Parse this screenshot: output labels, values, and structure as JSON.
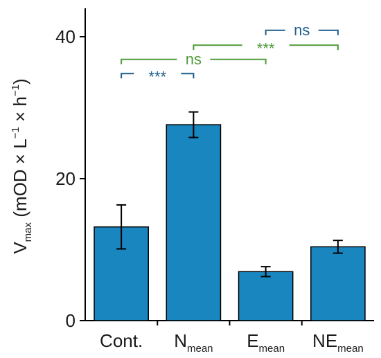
{
  "chart_data": {
    "type": "bar",
    "categories": [
      {
        "main": "Cont.",
        "sub": ""
      },
      {
        "main": "N",
        "sub": "mean"
      },
      {
        "main": "E",
        "sub": "mean"
      },
      {
        "main": "NE",
        "sub": "mean"
      }
    ],
    "values": [
      13.2,
      27.6,
      6.9,
      10.4
    ],
    "errors": [
      3.1,
      1.8,
      0.7,
      0.9
    ],
    "ylim": [
      0,
      44
    ],
    "yticks": [
      0,
      20,
      40
    ],
    "ylabel": {
      "main": "V",
      "main_sub": "max",
      "unit_open": " (mOD × L",
      "sup1": "−1",
      "unit_mid": " × h",
      "sup2": "−1",
      "unit_close": ")"
    },
    "bar_color": "#1a86bf",
    "significance": [
      {
        "from": 0,
        "to": 1,
        "label": "***",
        "color": "#1f5f8f",
        "y": 34.8
      },
      {
        "from": 0,
        "to": 2,
        "label": "ns",
        "color": "#4e9a3a",
        "y": 36.8
      },
      {
        "from": 1,
        "to": 3,
        "label": "***",
        "color": "#4e9a3a",
        "y": 38.8
      },
      {
        "from": 2,
        "to": 3,
        "label": "ns",
        "color": "#1f5f8f",
        "y": 40.9
      }
    ]
  }
}
